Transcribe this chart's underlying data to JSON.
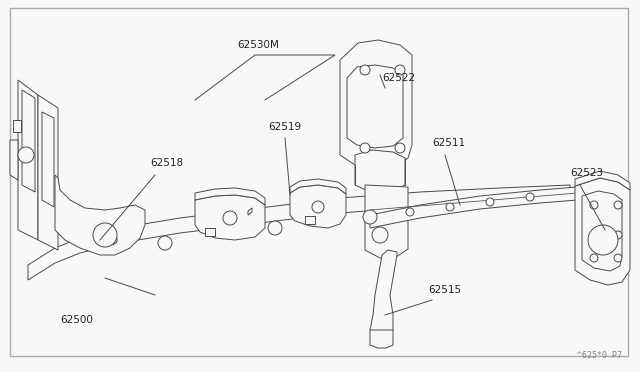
{
  "bg": "#f8f8f8",
  "lc": "#4a4a4a",
  "lc2": "#6a6a6a",
  "border_color": "#aaaaaa",
  "label_color": "#222222",
  "watermark": "^625*0 P7",
  "font_size": 7.5,
  "lw": 0.7
}
